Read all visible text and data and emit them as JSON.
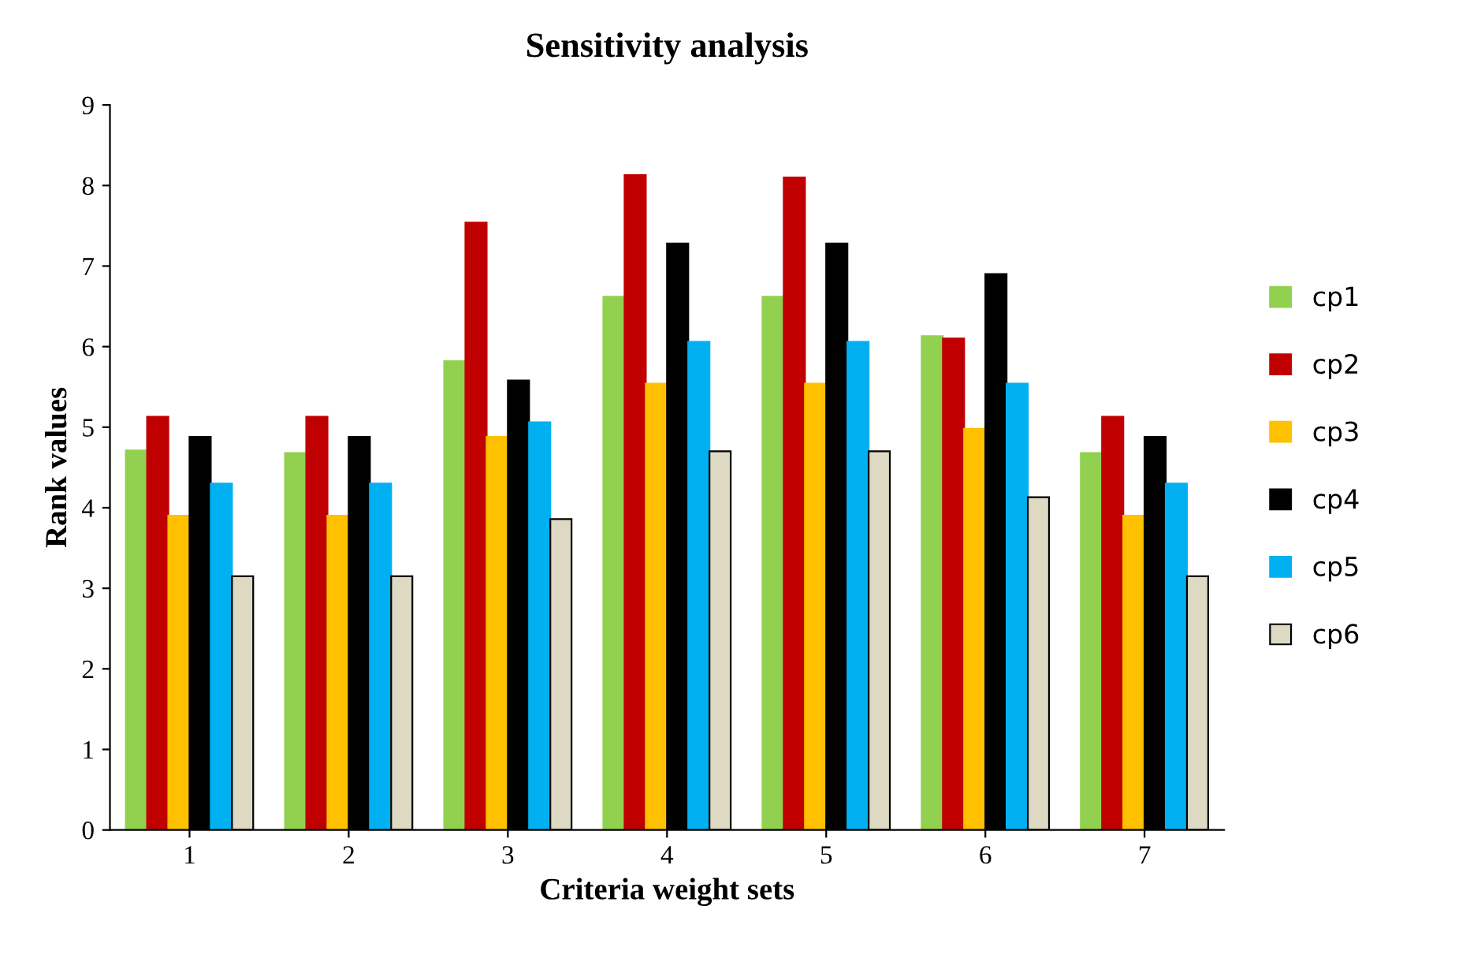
{
  "chart_data": {
    "type": "bar",
    "title": "Sensitivity analysis",
    "xlabel": "Criteria weight sets",
    "ylabel": "Rank values",
    "categories": [
      "1",
      "2",
      "3",
      "4",
      "5",
      "6",
      "7"
    ],
    "series": [
      {
        "name": "cp1",
        "color": "#92d050",
        "values": [
          4.71,
          4.68,
          5.82,
          6.62,
          6.62,
          6.13,
          4.68
        ]
      },
      {
        "name": "cp2",
        "color": "#c00000",
        "values": [
          5.13,
          5.13,
          7.54,
          8.13,
          8.1,
          6.1,
          5.13
        ]
      },
      {
        "name": "cp3",
        "color": "#ffc000",
        "values": [
          3.9,
          3.9,
          4.88,
          5.54,
          5.54,
          4.98,
          3.9
        ]
      },
      {
        "name": "cp4",
        "color": "#000000",
        "values": [
          4.88,
          4.88,
          5.58,
          7.28,
          7.28,
          6.9,
          4.88
        ]
      },
      {
        "name": "cp5",
        "color": "#00b0f0",
        "values": [
          4.3,
          4.3,
          5.06,
          6.06,
          6.06,
          5.54,
          4.3
        ]
      },
      {
        "name": "cp6",
        "color": "#ddd9c3",
        "values": [
          3.15,
          3.15,
          3.86,
          4.7,
          4.7,
          4.13,
          3.15
        ]
      }
    ],
    "ylim": [
      0,
      9
    ],
    "yticks": [
      0,
      1,
      2,
      3,
      4,
      5,
      6,
      7,
      8,
      9
    ],
    "grid": false,
    "legend": "right"
  }
}
